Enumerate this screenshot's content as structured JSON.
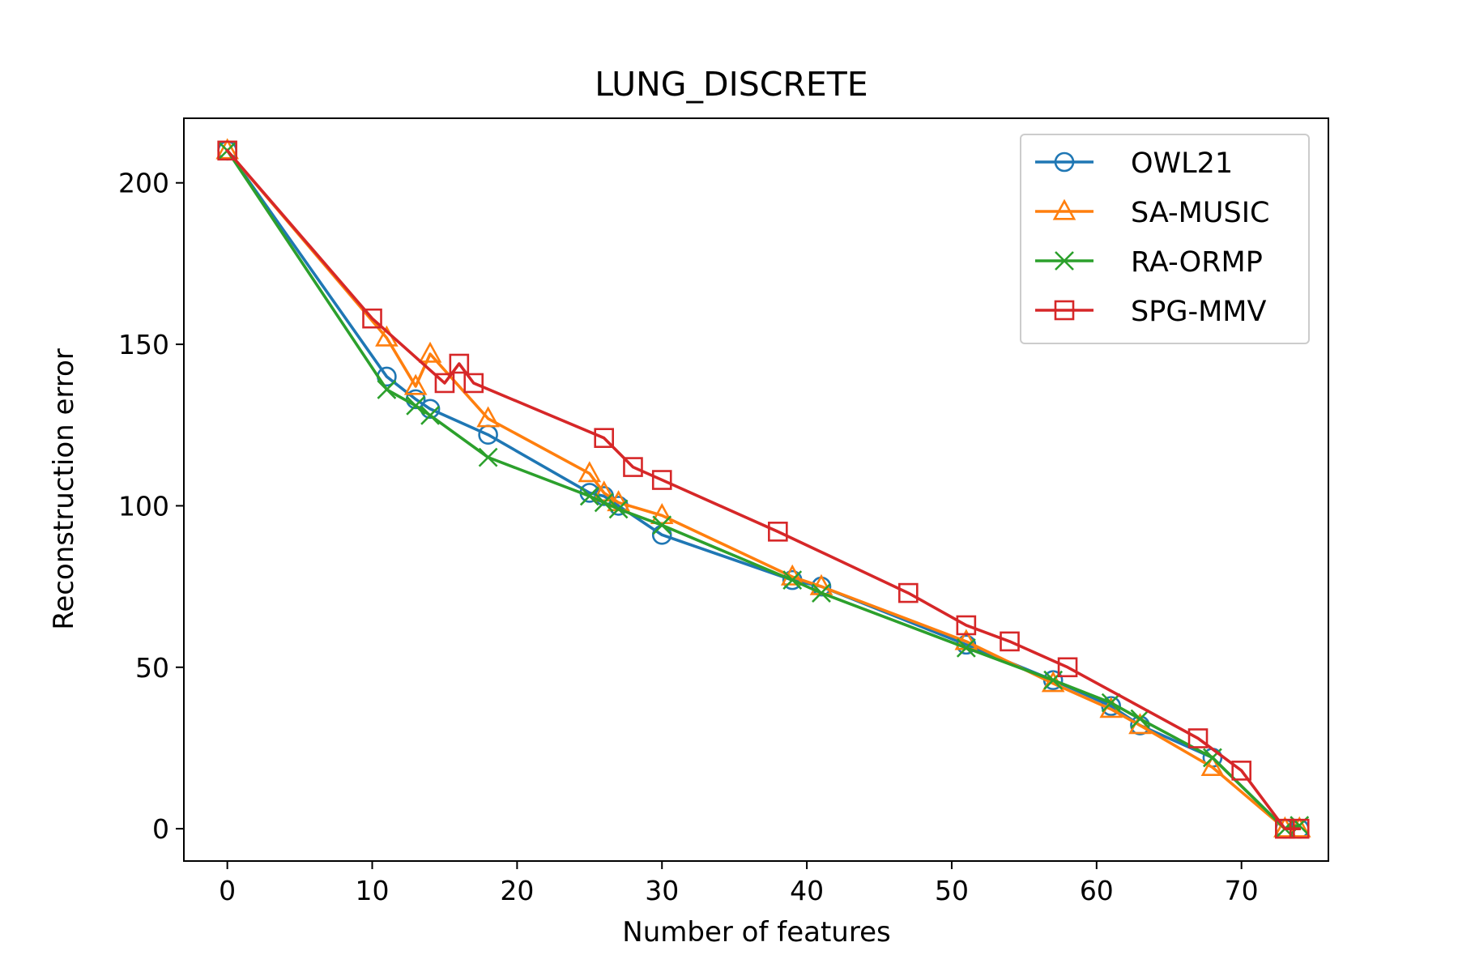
{
  "chart_data": {
    "type": "line",
    "title": "LUNG_DISCRETE",
    "xlabel": "Number of features",
    "ylabel": "Reconstruction error",
    "xlim": [
      -3,
      76
    ],
    "ylim": [
      -10,
      220
    ],
    "xticks": [
      0,
      10,
      20,
      30,
      40,
      50,
      60,
      70
    ],
    "yticks": [
      0,
      50,
      100,
      150,
      200
    ],
    "grid": false,
    "legend_position": "top-right",
    "series": [
      {
        "name": "OWL21",
        "color": "#1f77b4",
        "marker": "circle",
        "x": [
          0,
          11,
          13,
          14,
          18,
          25,
          26,
          27,
          30,
          39,
          41,
          51,
          57,
          61,
          63,
          68,
          73,
          74
        ],
        "y": [
          210,
          140,
          133,
          130,
          122,
          104,
          103,
          100,
          91,
          77,
          75,
          57,
          46,
          38,
          32,
          22,
          0,
          0
        ]
      },
      {
        "name": "SA-MUSIC",
        "color": "#ff7f0e",
        "marker": "triangle",
        "x": [
          0,
          11,
          13,
          14,
          18,
          25,
          26,
          27,
          30,
          39,
          41,
          51,
          57,
          61,
          63,
          68,
          73,
          74
        ],
        "y": [
          210,
          152,
          137,
          147,
          127,
          110,
          104,
          101,
          97,
          78,
          75,
          58,
          45,
          37,
          32,
          19,
          0,
          0
        ]
      },
      {
        "name": "RA-ORMP",
        "color": "#2ca02c",
        "marker": "x",
        "x": [
          0,
          11,
          13,
          14,
          18,
          25,
          26,
          27,
          30,
          39,
          41,
          51,
          57,
          61,
          63,
          68,
          73,
          74
        ],
        "y": [
          210,
          136,
          131,
          128,
          115,
          103,
          101,
          99,
          94,
          77,
          73,
          56,
          46,
          39,
          34,
          22,
          0,
          1
        ]
      },
      {
        "name": "SPG-MMV",
        "color": "#d62728",
        "marker": "square",
        "x": [
          0,
          10,
          15,
          16,
          17,
          26,
          28,
          30,
          38,
          47,
          51,
          54,
          58,
          67,
          70,
          73,
          74
        ],
        "y": [
          210,
          158,
          138,
          144,
          138,
          121,
          112,
          108,
          92,
          73,
          63,
          58,
          50,
          28,
          18,
          0,
          0
        ]
      }
    ]
  }
}
